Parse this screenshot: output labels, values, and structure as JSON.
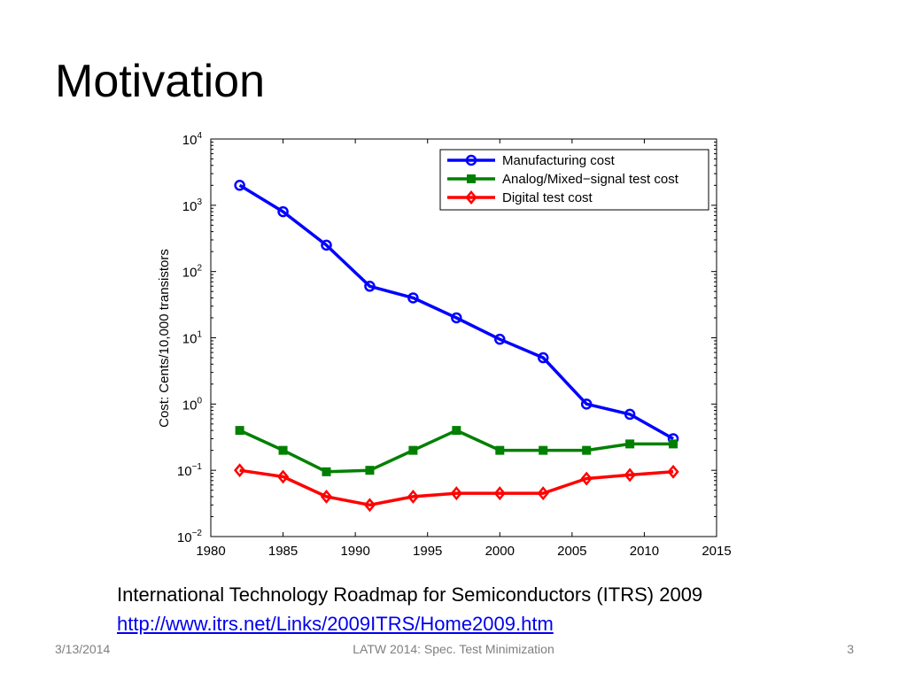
{
  "slide": {
    "title": "Motivation",
    "caption_text": "International Technology Roadmap for Semiconductors (ITRS) 2009",
    "caption_link": "http://www.itrs.net/Links/2009ITRS/Home2009.htm",
    "footer_date": "3/13/2014",
    "footer_center": "LATW 2014: Spec. Test Minimization",
    "footer_page": "3"
  },
  "chart_data": {
    "type": "line",
    "title": "",
    "xlabel": "",
    "ylabel": "Cost: Cents/10,000 transistors",
    "yscale": "log",
    "xlim": [
      1980,
      2015
    ],
    "ylim": [
      0.01,
      10000
    ],
    "x_ticks": [
      1980,
      1985,
      1990,
      1995,
      2000,
      2005,
      2010,
      2015
    ],
    "y_tick_exponents": [
      "-2",
      "-1",
      "0",
      "1",
      "2",
      "3",
      "4"
    ],
    "y_tick_base": "10",
    "x": [
      1982,
      1985,
      1988,
      1991,
      1994,
      1997,
      2000,
      2003,
      2006,
      2009,
      2012
    ],
    "legend_position": "top-right",
    "series": [
      {
        "name": "Manufacturing cost",
        "color": "#0000ff",
        "marker": "circle",
        "values": [
          2000,
          800,
          250,
          60,
          40,
          20,
          9.5,
          5,
          1.0,
          0.7,
          0.3
        ]
      },
      {
        "name": "Analog/Mixed−signal test cost",
        "color": "#008000",
        "marker": "square",
        "values": [
          0.4,
          0.2,
          0.095,
          0.1,
          0.2,
          0.4,
          0.2,
          0.2,
          0.2,
          0.25,
          0.25
        ]
      },
      {
        "name": "Digital test cost",
        "color": "#ff0000",
        "marker": "diamond",
        "values": [
          0.1,
          0.08,
          0.04,
          0.03,
          0.04,
          0.045,
          0.045,
          0.045,
          0.075,
          0.085,
          0.095
        ]
      }
    ]
  }
}
